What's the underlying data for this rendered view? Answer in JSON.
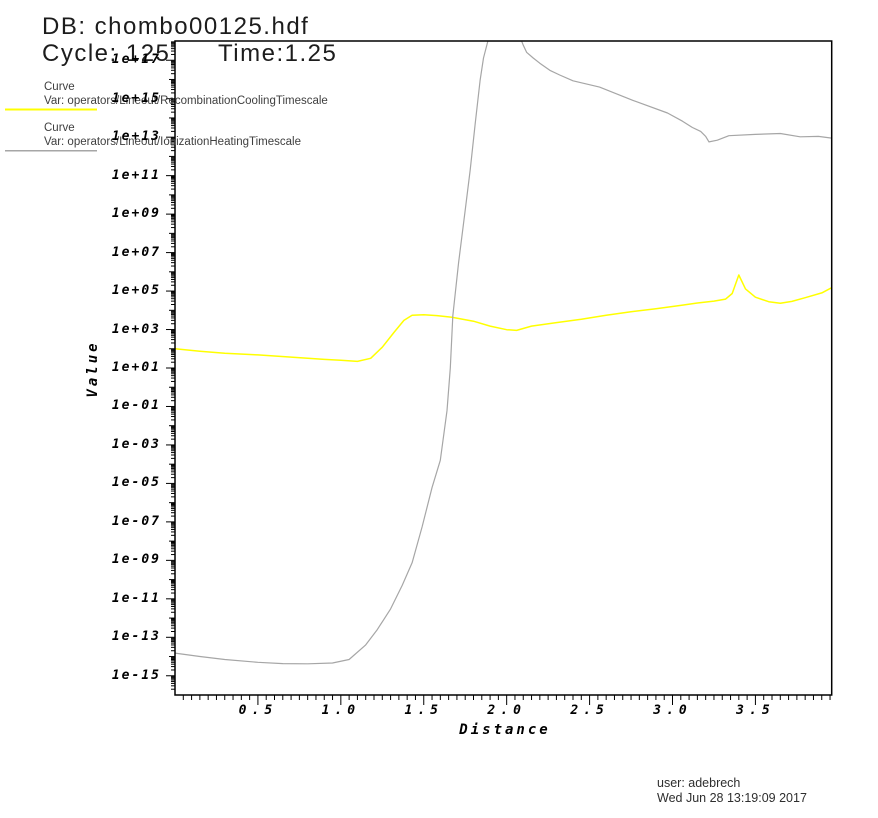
{
  "window": {
    "db_title": "DB: chombo00125.hdf",
    "cycle_label": "Cycle: 125",
    "time_label": "Time:1.25"
  },
  "legend": {
    "entries": [
      {
        "type_label": "Curve",
        "var_label": "Var: operators/Lineout/RecombinationCoolingTimescale",
        "color": "#ffff00"
      },
      {
        "type_label": "Curve",
        "var_label": "Var: operators/Lineout/IonizationHeatingTimescale",
        "color": "#a6a6a6"
      }
    ]
  },
  "footer": {
    "user_line": "user: adebrech",
    "date_line": "Wed Jun 28 13:19:09 2017"
  },
  "chart_data": {
    "type": "line",
    "title": "",
    "xlabel": "Distance",
    "ylabel": "Value",
    "x_scale": "linear",
    "y_scale": "log",
    "xlim": [
      0,
      3.96
    ],
    "ylim": [
      1e-16,
      1e+18
    ],
    "grid": false,
    "legend_position": "top-left",
    "axis_color": "#000000",
    "background_color": "#ffffff",
    "x_tick_values": [
      0.5,
      1.0,
      1.5,
      2.0,
      2.5,
      3.0,
      3.5
    ],
    "x_tick_labels": [
      "0.5",
      "1.0",
      "1.5",
      "2.0",
      "2.5",
      "3.0",
      "3.5"
    ],
    "x_minor_tick_step": 0.05,
    "y_tick_exponents": [
      17,
      15,
      13,
      11,
      9,
      7,
      5,
      3,
      1,
      -1,
      -3,
      -5,
      -7,
      -9,
      -11,
      -13,
      -15
    ],
    "y_tick_labels": [
      "1e+17",
      "1e+15",
      "1e+13",
      "1e+11",
      "1e+09",
      "1e+07",
      "1e+05",
      "1e+03",
      "1e+01",
      "1e-01",
      "1e-03",
      "1e-05",
      "1e-07",
      "1e-09",
      "1e-11",
      "1e-13",
      "1e-15"
    ],
    "series": [
      {
        "name": "operators/Lineout/RecombinationCoolingTimescale",
        "color": "#ffff00",
        "stroke_width": 1.5,
        "clipped_at_top": false,
        "points": [
          [
            0.0,
            100
          ],
          [
            0.15,
            75
          ],
          [
            0.3,
            58
          ],
          [
            0.5,
            48
          ],
          [
            0.7,
            37
          ],
          [
            0.9,
            28
          ],
          [
            1.0,
            25
          ],
          [
            1.1,
            22
          ],
          [
            1.18,
            32
          ],
          [
            1.25,
            120
          ],
          [
            1.32,
            700
          ],
          [
            1.38,
            3000
          ],
          [
            1.43,
            5500
          ],
          [
            1.5,
            5800
          ],
          [
            1.58,
            5300
          ],
          [
            1.67,
            4300
          ],
          [
            1.8,
            2700
          ],
          [
            1.9,
            1500
          ],
          [
            2.0,
            980
          ],
          [
            2.06,
            900
          ],
          [
            2.15,
            1500
          ],
          [
            2.3,
            2300
          ],
          [
            2.45,
            3400
          ],
          [
            2.6,
            5500
          ],
          [
            2.75,
            8500
          ],
          [
            2.9,
            12000
          ],
          [
            3.05,
            18000
          ],
          [
            3.15,
            24000
          ],
          [
            3.25,
            30000
          ],
          [
            3.32,
            38000
          ],
          [
            3.36,
            75000
          ],
          [
            3.4,
            680000
          ],
          [
            3.44,
            130000
          ],
          [
            3.5,
            48000
          ],
          [
            3.58,
            28000
          ],
          [
            3.65,
            23000
          ],
          [
            3.72,
            29000
          ],
          [
            3.8,
            45000
          ],
          [
            3.9,
            80000
          ],
          [
            3.96,
            150000
          ]
        ]
      },
      {
        "name": "operators/Lineout/IonizationHeatingTimescale",
        "color": "#a6a6a6",
        "stroke_width": 1.2,
        "clipped_at_top": true,
        "points": [
          [
            0.0,
            1.5e-14
          ],
          [
            0.15,
            1e-14
          ],
          [
            0.3,
            7e-15
          ],
          [
            0.5,
            5e-15
          ],
          [
            0.65,
            4.3e-15
          ],
          [
            0.8,
            4.2e-15
          ],
          [
            0.95,
            4.6e-15
          ],
          [
            1.05,
            7e-15
          ],
          [
            1.15,
            4e-14
          ],
          [
            1.22,
            2.5e-13
          ],
          [
            1.3,
            3e-12
          ],
          [
            1.37,
            5e-11
          ],
          [
            1.43,
            7.5e-10
          ],
          [
            1.49,
            5.5e-08
          ],
          [
            1.55,
            6e-06
          ],
          [
            1.6,
            0.00016
          ],
          [
            1.64,
            0.06
          ],
          [
            1.66,
            10
          ],
          [
            1.675,
            5000
          ],
          [
            1.71,
            3000000.0
          ],
          [
            1.75,
            1600000000.0
          ],
          [
            1.78,
            200000000000.0
          ],
          [
            1.81,
            50000000000000.0
          ],
          [
            1.84,
            9000000000000000.0
          ],
          [
            1.86,
            1.3e+17
          ],
          [
            1.887,
            1e+18
          ],
          [
            2.09,
            1e+18
          ],
          [
            2.1,
            6e+17
          ],
          [
            2.12,
            2.6e+17
          ],
          [
            2.16,
            1.3e+17
          ],
          [
            2.2,
            7e+16
          ],
          [
            2.26,
            3e+16
          ],
          [
            2.32,
            1.7e+16
          ],
          [
            2.4,
            8500000000000000.0
          ],
          [
            2.56,
            4000000000000000.0
          ],
          [
            2.76,
            830000000000000.0
          ],
          [
            2.97,
            180000000000000.0
          ],
          [
            3.06,
            68000000000000.0
          ],
          [
            3.12,
            32000000000000.0
          ],
          [
            3.17,
            20000000000000.0
          ],
          [
            3.2,
            11000000000000.0
          ],
          [
            3.22,
            5700000000000.0
          ],
          [
            3.27,
            7000000000000.0
          ],
          [
            3.34,
            12000000000000.0
          ],
          [
            3.5,
            14000000000000.0
          ],
          [
            3.65,
            15500000000000.0
          ],
          [
            3.77,
            10500000000000.0
          ],
          [
            3.88,
            11000000000000.0
          ],
          [
            3.96,
            9000000000000.0
          ]
        ]
      }
    ]
  }
}
